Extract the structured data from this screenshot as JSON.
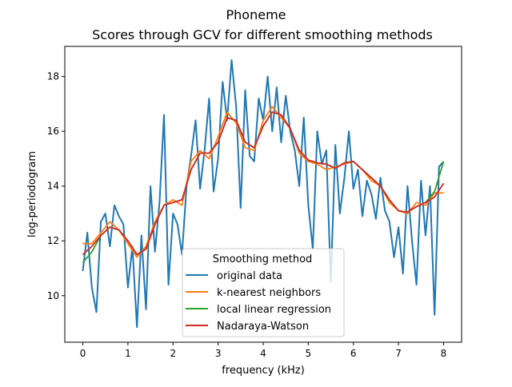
{
  "chart_data": {
    "type": "line",
    "title": "Phoneme",
    "subtitle": "Scores through GCV for different smoothing methods",
    "xlabel": "frequency (kHz)",
    "ylabel": "log-periodogram",
    "xlim": [
      -0.4,
      8.4
    ],
    "ylim": [
      8.3,
      19.1
    ],
    "xticks": [
      0,
      1,
      2,
      3,
      4,
      5,
      6,
      7,
      8
    ],
    "yticks": [
      10,
      12,
      14,
      16,
      18
    ],
    "grid": false,
    "legend": {
      "title": "Smoothing method",
      "placement": "bottom-center"
    },
    "series": [
      {
        "name": "original data",
        "color": "#1f77b4",
        "x": [
          0,
          0.1,
          0.2,
          0.3,
          0.4,
          0.5,
          0.6,
          0.7,
          0.8,
          0.9,
          1,
          1.1,
          1.2,
          1.3,
          1.4,
          1.5,
          1.6,
          1.7,
          1.8,
          1.9,
          2,
          2.1,
          2.2,
          2.3,
          2.4,
          2.5,
          2.6,
          2.7,
          2.8,
          2.9,
          3,
          3.1,
          3.2,
          3.3,
          3.4,
          3.5,
          3.6,
          3.7,
          3.8,
          3.9,
          4,
          4.1,
          4.2,
          4.3,
          4.4,
          4.5,
          4.6,
          4.7,
          4.8,
          4.9,
          5,
          5.1,
          5.2,
          5.3,
          5.4,
          5.5,
          5.6,
          5.7,
          5.8,
          5.9,
          6,
          6.1,
          6.2,
          6.3,
          6.4,
          6.5,
          6.6,
          6.7,
          6.8,
          6.9,
          7,
          7.1,
          7.2,
          7.3,
          7.4,
          7.5,
          7.6,
          7.7,
          7.8,
          7.9,
          8
        ],
        "y": [
          10.9,
          12.3,
          10.3,
          9.4,
          12.7,
          13.0,
          11.8,
          13.3,
          12.9,
          12.6,
          10.3,
          11.8,
          8.85,
          12.2,
          9.5,
          14.0,
          11.6,
          13.4,
          16.6,
          10.4,
          13.0,
          12.6,
          11.5,
          14.0,
          15.1,
          16.4,
          13.9,
          15.3,
          17.2,
          13.8,
          15.0,
          17.8,
          16.4,
          18.6,
          16.9,
          13.2,
          17.5,
          15.1,
          14.9,
          17.2,
          16.4,
          18.0,
          16.0,
          17.6,
          15.6,
          17.3,
          16.0,
          15.3,
          14.0,
          16.5,
          13.3,
          11.7,
          16.0,
          14.8,
          15.3,
          10.5,
          15.5,
          13.0,
          14.3,
          16.0,
          13.9,
          14.6,
          12.9,
          14.2,
          13.7,
          12.8,
          14.3,
          13.1,
          12.7,
          11.4,
          12.5,
          10.8,
          14.0,
          12.0,
          10.4,
          14.2,
          12.2,
          14.0,
          9.3,
          14.7,
          14.9
        ]
      },
      {
        "name": "k-nearest neighbors",
        "color": "#ff7f0e",
        "x": [
          0,
          0.2,
          0.4,
          0.6,
          0.8,
          1,
          1.2,
          1.4,
          1.6,
          1.8,
          2,
          2.2,
          2.4,
          2.6,
          2.8,
          3,
          3.2,
          3.4,
          3.6,
          3.8,
          4,
          4.2,
          4.4,
          4.6,
          4.8,
          5,
          5.2,
          5.4,
          5.6,
          5.8,
          6,
          6.2,
          6.4,
          6.6,
          6.8,
          7,
          7.2,
          7.4,
          7.6,
          7.8,
          8
        ],
        "y": [
          11.9,
          11.9,
          12.3,
          12.7,
          12.4,
          11.9,
          11.4,
          11.8,
          12.7,
          13.3,
          13.5,
          13.3,
          14.9,
          15.3,
          15.0,
          15.8,
          16.7,
          16.3,
          15.4,
          15.3,
          16.4,
          16.9,
          16.5,
          16.1,
          15.2,
          14.9,
          14.8,
          14.6,
          14.7,
          14.8,
          14.9,
          14.6,
          14.2,
          14.0,
          13.4,
          13.1,
          13.0,
          13.4,
          13.3,
          13.75,
          13.75
        ]
      },
      {
        "name": "local linear regression",
        "color": "#2ca02c",
        "x": [
          0,
          0.2,
          0.4,
          0.6,
          0.8,
          1,
          1.2,
          1.4,
          1.6,
          1.8,
          2,
          2.2,
          2.4,
          2.6,
          2.8,
          3,
          3.2,
          3.4,
          3.6,
          3.8,
          4,
          4.2,
          4.4,
          4.6,
          4.8,
          5,
          5.2,
          5.4,
          5.6,
          5.8,
          6,
          6.2,
          6.4,
          6.6,
          6.8,
          7,
          7.2,
          7.4,
          7.6,
          7.8,
          8
        ],
        "y": [
          11.2,
          11.6,
          12.2,
          12.5,
          12.4,
          12.0,
          11.5,
          11.7,
          12.6,
          13.3,
          13.4,
          13.5,
          14.6,
          15.2,
          15.2,
          15.6,
          16.5,
          16.4,
          15.6,
          15.4,
          16.2,
          16.7,
          16.6,
          16.1,
          15.3,
          14.95,
          14.85,
          14.8,
          14.65,
          14.85,
          14.9,
          14.6,
          14.3,
          14.0,
          13.5,
          13.1,
          13.05,
          13.25,
          13.4,
          13.8,
          14.9
        ]
      },
      {
        "name": "Nadaraya-Watson",
        "color": "#d62728",
        "x": [
          0,
          0.2,
          0.4,
          0.6,
          0.8,
          1,
          1.2,
          1.4,
          1.6,
          1.8,
          2,
          2.2,
          2.4,
          2.6,
          2.8,
          3,
          3.2,
          3.4,
          3.6,
          3.8,
          4,
          4.2,
          4.4,
          4.6,
          4.8,
          5,
          5.2,
          5.4,
          5.6,
          5.8,
          6,
          6.2,
          6.4,
          6.6,
          6.8,
          7,
          7.2,
          7.4,
          7.6,
          7.8,
          8
        ],
        "y": [
          11.5,
          11.8,
          12.2,
          12.5,
          12.4,
          12.0,
          11.5,
          11.7,
          12.6,
          13.3,
          13.4,
          13.5,
          14.6,
          15.2,
          15.2,
          15.6,
          16.5,
          16.4,
          15.6,
          15.4,
          16.2,
          16.7,
          16.6,
          16.1,
          15.3,
          14.95,
          14.85,
          14.8,
          14.65,
          14.85,
          14.9,
          14.6,
          14.3,
          14.0,
          13.5,
          13.1,
          13.05,
          13.25,
          13.4,
          13.6,
          14.1
        ]
      }
    ]
  }
}
